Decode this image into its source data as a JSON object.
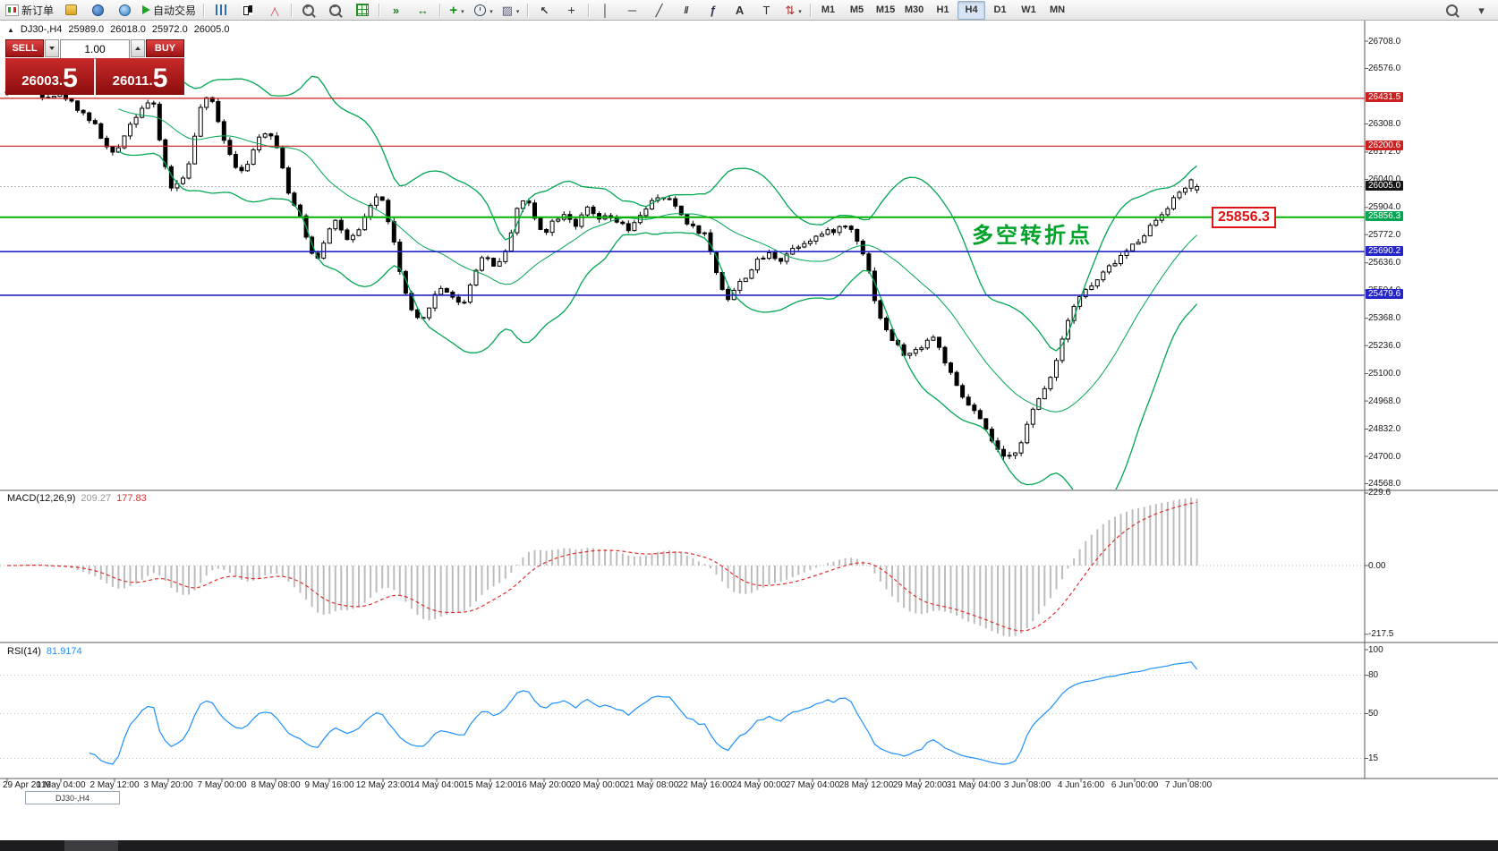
{
  "toolbar": {
    "new_order_label": "新订单",
    "autotrade_label": "自动交易",
    "timeframes": [
      "M1",
      "M5",
      "M15",
      "M30",
      "H1",
      "H4",
      "D1",
      "W1",
      "MN"
    ],
    "active_timeframe": "H4"
  },
  "quote_panel": {
    "sell_label": "SELL",
    "buy_label": "BUY",
    "volume": "1.00",
    "sell_price": {
      "main": "26003.",
      "big": "5"
    },
    "buy_price": {
      "main": "26011.",
      "big": "5"
    }
  },
  "chart_header": {
    "symbol": "DJ30-,H4",
    "open": "25989.0",
    "high": "26018.0",
    "low": "25972.0",
    "close": "26005.0"
  },
  "annotation": {
    "text": "多空转折点",
    "color": "#00a32a"
  },
  "price_tag": {
    "text": "25856.3",
    "color": "#e01212"
  },
  "panels": {
    "macd": {
      "name": "MACD(12,26,9)",
      "value": "209.27",
      "signal": "177.83"
    },
    "rsi": {
      "name": "RSI(14)",
      "value": "81.9174"
    }
  },
  "window_tab": {
    "label": "DJ30-,H4"
  },
  "chart_data": {
    "type": "candlestick",
    "symbol": "DJ30-",
    "timeframe": "H4",
    "current": {
      "open": 25989.0,
      "high": 26018.0,
      "low": 25972.0,
      "close": 26005.0
    },
    "ylim": [
      24540,
      26812
    ],
    "bid_line": 26005.0,
    "price_axis": [
      {
        "t": "26708.0",
        "p": 26708.0,
        "bg": null
      },
      {
        "t": "26576.0",
        "p": 26576.0,
        "bg": null
      },
      {
        "t": "26431.5",
        "p": 26431.5,
        "bg": "#cc1f1f"
      },
      {
        "t": "26308.0",
        "p": 26308.0,
        "bg": null
      },
      {
        "t": "26200.6",
        "p": 26200.6,
        "bg": "#cc1f1f"
      },
      {
        "t": "26172.0",
        "p": 26172.0,
        "bg": null
      },
      {
        "t": "26040.0",
        "p": 26040.0,
        "bg": null
      },
      {
        "t": "26005.0",
        "p": 26005.0,
        "bg": "#141414"
      },
      {
        "t": "25904.0",
        "p": 25904.0,
        "bg": null
      },
      {
        "t": "25856.3",
        "p": 25856.3,
        "bg": "#00a651"
      },
      {
        "t": "25772.0",
        "p": 25772.0,
        "bg": null
      },
      {
        "t": "25690.2",
        "p": 25690.2,
        "bg": "#2424c8"
      },
      {
        "t": "25636.0",
        "p": 25636.0,
        "bg": null
      },
      {
        "t": "25504.0",
        "p": 25504.0,
        "bg": null
      },
      {
        "t": "25479.6",
        "p": 25479.6,
        "bg": "#2424c8"
      },
      {
        "t": "25368.0",
        "p": 25368.0,
        "bg": null
      },
      {
        "t": "25236.0",
        "p": 25236.0,
        "bg": null
      },
      {
        "t": "25100.0",
        "p": 25100.0,
        "bg": null
      },
      {
        "t": "24968.0",
        "p": 24968.0,
        "bg": null
      },
      {
        "t": "24832.0",
        "p": 24832.0,
        "bg": null
      },
      {
        "t": "24700.0",
        "p": 24700.0,
        "bg": null
      },
      {
        "t": "24568.0",
        "p": 24568.0,
        "bg": null
      }
    ],
    "hlines": [
      {
        "price": 26431.5,
        "color": "#cc1f1f",
        "width": 1.2
      },
      {
        "price": 26200.6,
        "color": "#cc1f1f",
        "width": 1.2
      },
      {
        "price": 25856.3,
        "color": "#00b200",
        "width": 2
      },
      {
        "price": 25690.2,
        "color": "#2424c8",
        "width": 1.6
      },
      {
        "price": 25479.6,
        "color": "#2424c8",
        "width": 1.6
      }
    ],
    "price_path": [
      [
        8,
        26460
      ],
      [
        30,
        26480
      ],
      [
        50,
        26445
      ],
      [
        70,
        26450
      ],
      [
        88,
        26380
      ],
      [
        105,
        26310
      ],
      [
        118,
        26200
      ],
      [
        128,
        26150
      ],
      [
        140,
        26270
      ],
      [
        152,
        26350
      ],
      [
        163,
        26415
      ],
      [
        172,
        26390
      ],
      [
        182,
        26140
      ],
      [
        192,
        25995
      ],
      [
        203,
        26030
      ],
      [
        214,
        26160
      ],
      [
        226,
        26430
      ],
      [
        238,
        26410
      ],
      [
        250,
        26240
      ],
      [
        262,
        26110
      ],
      [
        275,
        26085
      ],
      [
        290,
        26260
      ],
      [
        302,
        26270
      ],
      [
        314,
        26140
      ],
      [
        324,
        25945
      ],
      [
        334,
        25875
      ],
      [
        346,
        25700
      ],
      [
        356,
        25660
      ],
      [
        366,
        25800
      ],
      [
        376,
        25845
      ],
      [
        388,
        25740
      ],
      [
        400,
        25775
      ],
      [
        412,
        25905
      ],
      [
        424,
        25975
      ],
      [
        437,
        25800
      ],
      [
        449,
        25545
      ],
      [
        461,
        25385
      ],
      [
        471,
        25340
      ],
      [
        482,
        25455
      ],
      [
        494,
        25520
      ],
      [
        506,
        25475
      ],
      [
        516,
        25420
      ],
      [
        528,
        25560
      ],
      [
        540,
        25685
      ],
      [
        552,
        25620
      ],
      [
        565,
        25685
      ],
      [
        578,
        25905
      ],
      [
        588,
        25950
      ],
      [
        598,
        25845
      ],
      [
        608,
        25780
      ],
      [
        620,
        25850
      ],
      [
        632,
        25880
      ],
      [
        644,
        25815
      ],
      [
        656,
        25900
      ],
      [
        668,
        25845
      ],
      [
        680,
        25855
      ],
      [
        692,
        25830
      ],
      [
        704,
        25785
      ],
      [
        716,
        25875
      ],
      [
        728,
        25930
      ],
      [
        740,
        25950
      ],
      [
        752,
        25930
      ],
      [
        764,
        25850
      ],
      [
        776,
        25800
      ],
      [
        788,
        25775
      ],
      [
        800,
        25600
      ],
      [
        812,
        25455
      ],
      [
        823,
        25520
      ],
      [
        836,
        25585
      ],
      [
        848,
        25650
      ],
      [
        860,
        25680
      ],
      [
        872,
        25650
      ],
      [
        885,
        25705
      ],
      [
        898,
        25735
      ],
      [
        910,
        25760
      ],
      [
        922,
        25780
      ],
      [
        935,
        25800
      ],
      [
        948,
        25820
      ],
      [
        958,
        25750
      ],
      [
        968,
        25650
      ],
      [
        978,
        25450
      ],
      [
        988,
        25320
      ],
      [
        1000,
        25250
      ],
      [
        1012,
        25185
      ],
      [
        1022,
        25205
      ],
      [
        1032,
        25245
      ],
      [
        1042,
        25285
      ],
      [
        1052,
        25200
      ],
      [
        1062,
        25100
      ],
      [
        1072,
        25005
      ],
      [
        1082,
        24950
      ],
      [
        1092,
        24900
      ],
      [
        1102,
        24820
      ],
      [
        1112,
        24750
      ],
      [
        1122,
        24685
      ],
      [
        1132,
        24705
      ],
      [
        1142,
        24785
      ],
      [
        1152,
        24900
      ],
      [
        1162,
        24985
      ],
      [
        1172,
        25070
      ],
      [
        1182,
        25185
      ],
      [
        1192,
        25355
      ],
      [
        1202,
        25450
      ],
      [
        1212,
        25500
      ],
      [
        1222,
        25530
      ],
      [
        1232,
        25580
      ],
      [
        1242,
        25625
      ],
      [
        1252,
        25665
      ],
      [
        1262,
        25705
      ],
      [
        1272,
        25745
      ],
      [
        1282,
        25795
      ],
      [
        1292,
        25845
      ],
      [
        1302,
        25895
      ],
      [
        1312,
        25945
      ],
      [
        1322,
        25995
      ],
      [
        1332,
        26035
      ],
      [
        1341,
        26005
      ]
    ],
    "indicators": {
      "bollinger": {
        "color": "#00a651"
      },
      "macd": {
        "current": 209.27,
        "current_signal": 177.83,
        "histogram_color": "#bdbdbd",
        "signal_color": "#e03030",
        "axis": [
          {
            "t": "229.6",
            "v": 229.6
          },
          {
            "t": "0.00",
            "v": 0
          },
          {
            "t": "-217.5",
            "v": -217.5
          }
        ]
      },
      "rsi": {
        "current": 81.9174,
        "color": "#1e90ff",
        "levels": [
          80,
          50,
          15
        ],
        "axis": [
          {
            "t": "100",
            "v": 100
          },
          {
            "t": "80",
            "v": 80
          },
          {
            "t": "50",
            "v": 50
          },
          {
            "t": "15",
            "v": 15
          }
        ]
      }
    },
    "time_axis": [
      "29 Apr 2019",
      "1 May 04:00",
      "2 May 12:00",
      "3 May 20:00",
      "7 May 00:00",
      "8 May 08:00",
      "9 May 16:00",
      "12 May 23:00",
      "14 May 04:00",
      "15 May 12:00",
      "16 May 20:00",
      "20 May 00:00",
      "21 May 08:00",
      "22 May 16:00",
      "24 May 00:00",
      "27 May 04:00",
      "28 May 12:00",
      "29 May 20:00",
      "31 May 04:00",
      "3 Jun 08:00",
      "4 Jun 16:00",
      "6 Jun 00:00",
      "7 Jun 08:00"
    ]
  }
}
